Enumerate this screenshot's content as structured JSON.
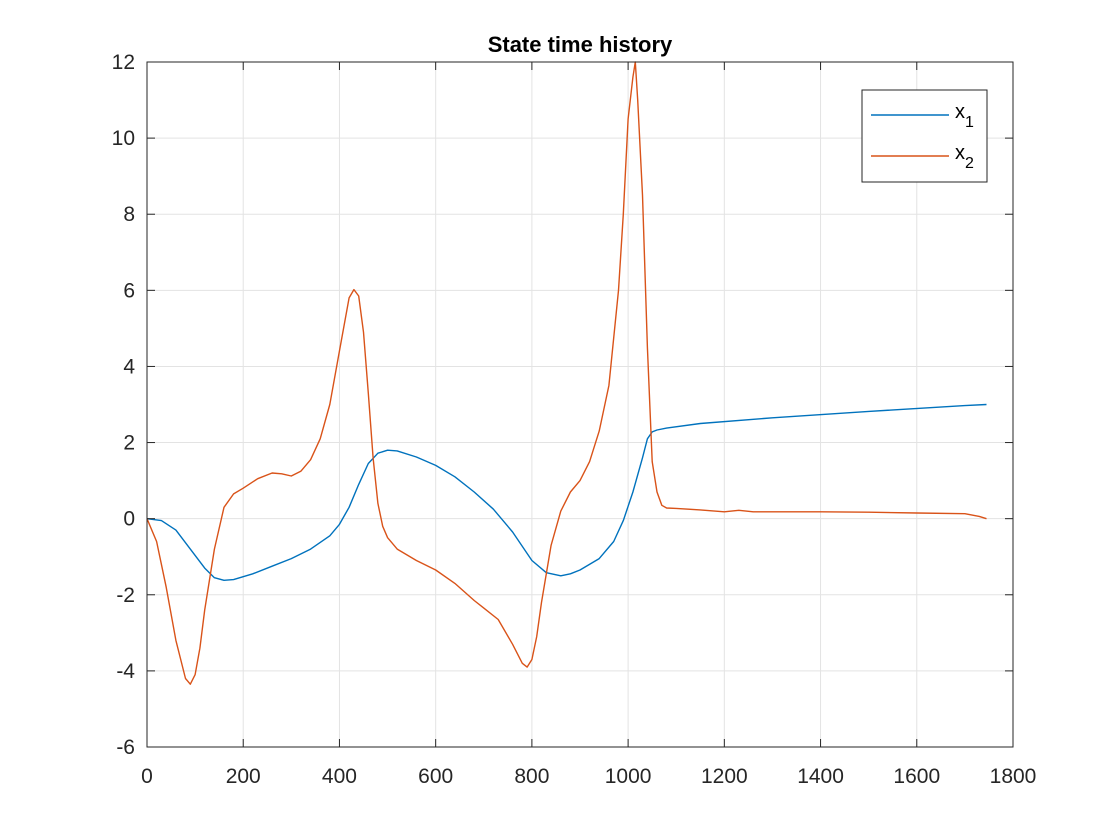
{
  "chart_data": {
    "type": "line",
    "title": "State time history",
    "xlabel": "",
    "ylabel": "",
    "xlim": [
      0,
      1800
    ],
    "ylim": [
      -6,
      12
    ],
    "xticks": [
      0,
      200,
      400,
      600,
      800,
      1000,
      1200,
      1400,
      1600,
      1800
    ],
    "yticks": [
      -6,
      -4,
      -2,
      0,
      2,
      4,
      6,
      8,
      10,
      12
    ],
    "grid": true,
    "legend_position": "top-right",
    "series": [
      {
        "name": "x",
        "subscript": "1",
        "color": "#0072BD",
        "x": [
          0,
          30,
          60,
          90,
          120,
          140,
          160,
          180,
          220,
          260,
          300,
          340,
          380,
          400,
          420,
          440,
          460,
          480,
          500,
          520,
          560,
          600,
          640,
          680,
          720,
          760,
          800,
          830,
          860,
          880,
          900,
          940,
          970,
          990,
          1010,
          1030,
          1040,
          1050,
          1060,
          1080,
          1150,
          1300,
          1500,
          1700,
          1745
        ],
        "y": [
          0,
          -0.05,
          -0.3,
          -0.8,
          -1.3,
          -1.55,
          -1.62,
          -1.6,
          -1.45,
          -1.25,
          -1.05,
          -0.8,
          -0.45,
          -0.15,
          0.3,
          0.9,
          1.45,
          1.72,
          1.8,
          1.78,
          1.62,
          1.4,
          1.1,
          0.7,
          0.25,
          -0.35,
          -1.1,
          -1.42,
          -1.5,
          -1.45,
          -1.35,
          -1.05,
          -0.6,
          -0.05,
          0.7,
          1.6,
          2.1,
          2.28,
          2.33,
          2.38,
          2.5,
          2.65,
          2.82,
          2.97,
          3.0
        ]
      },
      {
        "name": "x",
        "subscript": "2",
        "color": "#D95319",
        "x": [
          0,
          20,
          40,
          60,
          80,
          90,
          100,
          110,
          120,
          140,
          160,
          180,
          200,
          230,
          260,
          280,
          300,
          320,
          340,
          360,
          380,
          400,
          420,
          430,
          440,
          450,
          460,
          470,
          480,
          490,
          500,
          520,
          560,
          600,
          640,
          680,
          700,
          730,
          760,
          780,
          790,
          800,
          810,
          820,
          840,
          860,
          880,
          900,
          920,
          940,
          960,
          980,
          990,
          1000,
          1010,
          1015,
          1020,
          1030,
          1040,
          1050,
          1060,
          1070,
          1080,
          1100,
          1150,
          1200,
          1230,
          1260,
          1300,
          1400,
          1500,
          1600,
          1700,
          1730,
          1745
        ],
        "y": [
          0,
          -0.6,
          -1.8,
          -3.2,
          -4.2,
          -4.35,
          -4.1,
          -3.4,
          -2.4,
          -0.8,
          0.3,
          0.65,
          0.8,
          1.05,
          1.2,
          1.18,
          1.12,
          1.25,
          1.55,
          2.1,
          3.0,
          4.4,
          5.8,
          6.02,
          5.85,
          4.9,
          3.3,
          1.6,
          0.4,
          -0.2,
          -0.5,
          -0.8,
          -1.1,
          -1.35,
          -1.7,
          -2.15,
          -2.35,
          -2.65,
          -3.3,
          -3.8,
          -3.9,
          -3.7,
          -3.1,
          -2.2,
          -0.7,
          0.2,
          0.7,
          1.0,
          1.5,
          2.3,
          3.5,
          6.0,
          8.0,
          10.5,
          11.6,
          12.0,
          11.0,
          8.5,
          4.5,
          1.5,
          0.7,
          0.35,
          0.28,
          0.27,
          0.23,
          0.18,
          0.22,
          0.18,
          0.18,
          0.18,
          0.17,
          0.15,
          0.13,
          0.06,
          0.0
        ]
      }
    ]
  }
}
